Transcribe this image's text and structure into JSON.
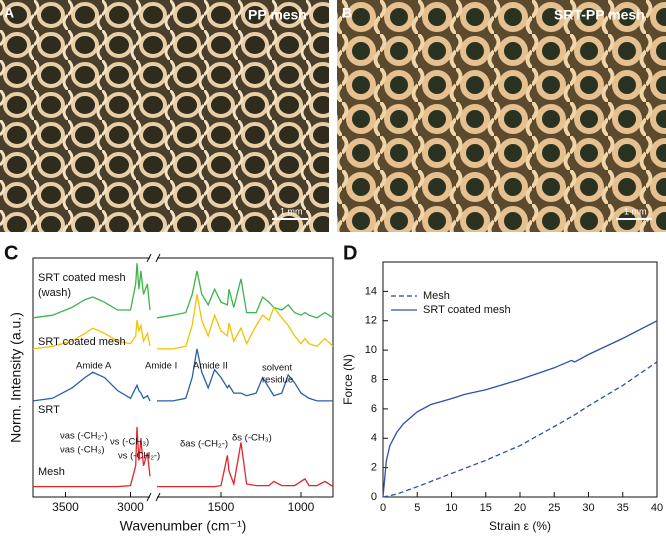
{
  "photos": [
    {
      "panel": "A",
      "caption": "PP mesh",
      "scale": "1 mm"
    },
    {
      "panel": "B",
      "caption": "SRT-PP mesh",
      "scale": "1 mm"
    }
  ],
  "chart_data": [
    {
      "type": "spectra",
      "panel": "C",
      "xlabel": "Wavenumber (cm⁻¹)",
      "ylabel": "Norm. Intensity (a.u.)",
      "xlim": [
        3750,
        800
      ],
      "x_break": [
        2850,
        1900
      ],
      "xticks": [
        3500,
        3000,
        1500,
        1000
      ],
      "ylim": [
        0,
        4.6
      ],
      "x": [
        3750,
        3600,
        3450,
        3350,
        3290,
        3200,
        3100,
        3000,
        2960,
        2950,
        2935,
        2920,
        2900,
        2870,
        2850,
        2350,
        1900,
        1800,
        1720,
        1680,
        1650,
        1620,
        1580,
        1540,
        1500,
        1460,
        1450,
        1420,
        1375,
        1340,
        1280,
        1240,
        1200,
        1170,
        1120,
        1080,
        1040,
        1000,
        975,
        950,
        900,
        850,
        800
      ],
      "series": [
        {
          "name": [
            "SRT coated mesh",
            "(wash)"
          ],
          "color": "#3cb44b",
          "values": [
            3.45,
            3.5,
            3.65,
            3.8,
            3.85,
            3.75,
            3.6,
            3.6,
            4.1,
            4.5,
            4.0,
            4.35,
            3.9,
            4.1,
            3.6,
            null,
            3.45,
            3.5,
            3.55,
            3.9,
            4.35,
            3.9,
            3.7,
            4.0,
            3.75,
            3.7,
            4.0,
            3.65,
            4.2,
            3.55,
            3.55,
            3.85,
            3.75,
            3.65,
            3.6,
            3.7,
            3.55,
            3.5,
            3.55,
            3.5,
            3.45,
            3.55,
            3.45
          ]
        },
        {
          "name": [
            "SRT coated mesh"
          ],
          "color": "#f2c200",
          "values": [
            2.85,
            2.9,
            3.0,
            3.15,
            3.25,
            3.15,
            3.0,
            2.95,
            3.1,
            3.4,
            3.2,
            3.3,
            3.0,
            3.15,
            2.9,
            null,
            2.85,
            2.85,
            2.9,
            3.3,
            3.9,
            3.4,
            3.1,
            3.5,
            3.2,
            3.1,
            3.35,
            3.0,
            3.25,
            2.95,
            3.3,
            3.5,
            3.4,
            3.65,
            3.45,
            3.3,
            3.1,
            2.95,
            3.05,
            2.95,
            2.9,
            3.05,
            2.9
          ]
        },
        {
          "name": [
            "SRT"
          ],
          "color": "#2a5faa",
          "values": [
            1.85,
            1.9,
            2.1,
            2.3,
            2.4,
            2.3,
            2.05,
            1.9,
            2.1,
            2.15,
            2.05,
            2.0,
            1.9,
            1.95,
            1.85,
            null,
            1.85,
            1.85,
            1.9,
            2.3,
            2.85,
            2.4,
            2.1,
            2.45,
            2.3,
            2.1,
            2.15,
            2.0,
            2.0,
            1.95,
            2.0,
            2.3,
            2.1,
            1.95,
            2.0,
            2.35,
            2.2,
            2.0,
            1.95,
            1.9,
            1.85,
            1.85,
            1.85
          ]
        },
        {
          "name": [
            "Mesh"
          ],
          "color": "#e0262a",
          "values": [
            0.2,
            0.2,
            0.2,
            0.2,
            0.2,
            0.2,
            0.2,
            0.22,
            0.6,
            1.35,
            0.7,
            1.1,
            0.6,
            0.85,
            0.4,
            null,
            0.2,
            0.2,
            0.2,
            0.2,
            0.2,
            0.2,
            0.2,
            0.2,
            0.22,
            0.8,
            0.5,
            0.25,
            1.05,
            0.25,
            0.22,
            0.22,
            0.22,
            0.3,
            0.22,
            0.22,
            0.22,
            0.3,
            0.35,
            0.22,
            0.22,
            0.3,
            0.2
          ]
        }
      ],
      "annotations": [
        "Amide A",
        "Amide I",
        "Amide II",
        "solvent",
        "residue",
        "νas (-CH₂-)",
        "νas (-CH₃)",
        "νs (-CH₃)",
        "νs (-CH₂-)",
        "δas (-CH₂-)",
        "δs (-CH₃)"
      ]
    },
    {
      "type": "line",
      "panel": "D",
      "xlabel": "Strain ε (%)",
      "ylabel": "Force (N)",
      "xlim": [
        0,
        40
      ],
      "xticks": [
        0,
        5,
        10,
        15,
        20,
        25,
        30,
        35,
        40
      ],
      "ylim": [
        0,
        16
      ],
      "yticks": [
        0,
        2,
        4,
        6,
        8,
        10,
        12,
        14
      ],
      "legend": "upper left",
      "series": [
        {
          "name": "Mesh",
          "color": "#2f4fa8",
          "dashed": true,
          "x": [
            0,
            2,
            5,
            10,
            15,
            20,
            25,
            28,
            30,
            35,
            40
          ],
          "values": [
            0,
            0.2,
            0.7,
            1.6,
            2.5,
            3.5,
            4.8,
            5.6,
            6.2,
            7.6,
            9.2
          ]
        },
        {
          "name": "SRT coated mesh",
          "color": "#2f4fa8",
          "dashed": false,
          "x": [
            0,
            0.5,
            1,
            2,
            3,
            5,
            7,
            10,
            12,
            15,
            20,
            25,
            27.5,
            28,
            30,
            35,
            40
          ],
          "values": [
            0,
            2.5,
            3.5,
            4.4,
            5.0,
            5.8,
            6.3,
            6.7,
            7.0,
            7.3,
            8.0,
            8.8,
            9.3,
            9.2,
            9.7,
            10.8,
            12.0
          ]
        }
      ]
    }
  ]
}
